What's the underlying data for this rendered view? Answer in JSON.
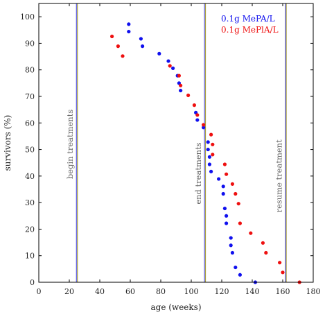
{
  "chart_data": {
    "type": "scatter",
    "xlabel": "age (weeks)",
    "ylabel": "survivors (%)",
    "xlim": [
      0,
      180
    ],
    "ylim": [
      0,
      105
    ],
    "xticks": [
      "0",
      "20",
      "40",
      "60",
      "80",
      "100",
      "120",
      "140",
      "160",
      "180"
    ],
    "yticks": [
      "0",
      "10",
      "20",
      "30",
      "40",
      "50",
      "60",
      "70",
      "80",
      "90",
      "100"
    ],
    "legend_position": "top-right",
    "grid": false,
    "series": [
      {
        "name": "0.1g MePA/L",
        "color": "#1010ee",
        "points": [
          [
            59,
            97.2
          ],
          [
            59,
            94.4
          ],
          [
            67,
            91.7
          ],
          [
            68,
            88.9
          ],
          [
            79,
            86.1
          ],
          [
            85,
            83.3
          ],
          [
            88,
            80.6
          ],
          [
            91,
            77.8
          ],
          [
            92,
            75.0
          ],
          [
            93,
            72.2
          ],
          [
            103,
            63.9
          ],
          [
            104,
            61.1
          ],
          [
            108,
            58.3
          ],
          [
            111,
            52.8
          ],
          [
            111,
            50.0
          ],
          [
            112,
            47.2
          ],
          [
            112,
            44.4
          ],
          [
            113,
            41.7
          ],
          [
            118,
            38.9
          ],
          [
            121,
            36.1
          ],
          [
            121,
            33.3
          ],
          [
            122,
            27.8
          ],
          [
            123,
            25.0
          ],
          [
            123,
            22.2
          ],
          [
            126,
            16.7
          ],
          [
            126,
            13.9
          ],
          [
            127,
            11.1
          ],
          [
            129,
            5.6
          ],
          [
            132,
            2.8
          ],
          [
            142,
            0
          ]
        ]
      },
      {
        "name": "0.1g MePlA/L",
        "color": "#ee1010",
        "points": [
          [
            48,
            92.6
          ],
          [
            52,
            88.9
          ],
          [
            55,
            85.2
          ],
          [
            86,
            81.5
          ],
          [
            92,
            77.8
          ],
          [
            93,
            74.1
          ],
          [
            98,
            70.4
          ],
          [
            102,
            66.7
          ],
          [
            104,
            63.0
          ],
          [
            108,
            59.3
          ],
          [
            113,
            55.6
          ],
          [
            114,
            51.9
          ],
          [
            114,
            48.1
          ],
          [
            122,
            44.4
          ],
          [
            123,
            40.7
          ],
          [
            127,
            37.0
          ],
          [
            129,
            33.3
          ],
          [
            131,
            29.6
          ],
          [
            132,
            22.2
          ],
          [
            139,
            18.5
          ],
          [
            147,
            14.8
          ],
          [
            149,
            11.1
          ],
          [
            158,
            7.4
          ],
          [
            160,
            3.7
          ],
          [
            171,
            0
          ]
        ]
      }
    ],
    "vlines": [
      {
        "x": 25,
        "label": "begin treatments",
        "label_y": 52
      },
      {
        "x": 109,
        "label": "end treatments",
        "label_y": 41
      },
      {
        "x": 162,
        "label": "resume treatment",
        "label_y": 40
      }
    ]
  }
}
